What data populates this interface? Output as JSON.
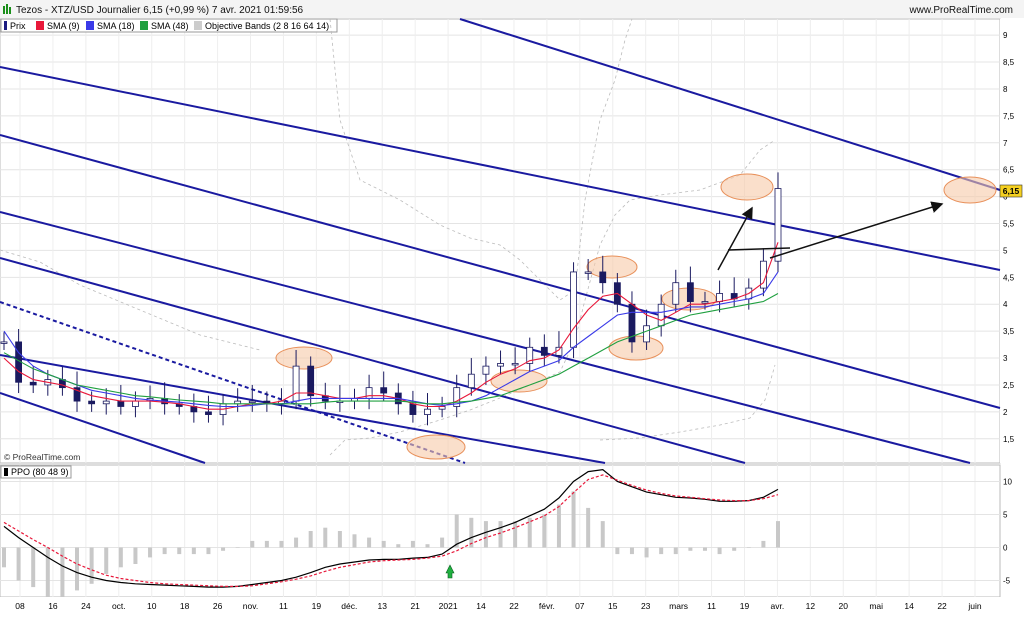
{
  "header": {
    "title": "Tezos - XTZ/USD Journalier 6,15 (+0,99 %) 7 avr. 2021 01:59:56",
    "site": "www.ProRealTime.com"
  },
  "legend": [
    {
      "label": "Prix",
      "color": "#1a1a80"
    },
    {
      "label": "SMA (9)",
      "color": "#e8183a"
    },
    {
      "label": "SMA (18)",
      "color": "#3a3ae8"
    },
    {
      "label": "SMA (48)",
      "color": "#20a040"
    },
    {
      "label": "Objective Bands (2 8 16 64 14)",
      "color": "#bbbbbb"
    }
  ],
  "copyright": "© ProRealTime.com",
  "price_badge": "6,15",
  "ppo_label": "PPO (80 48 9)",
  "chart_data": [
    {
      "type": "line",
      "panel": "price",
      "title": "Tezos - XTZ/USD Journalier",
      "y_ticks": [
        "9",
        "8,5",
        "8",
        "7,5",
        "7",
        "6,5",
        "6",
        "5,5",
        "5",
        "4,5",
        "4",
        "3,5",
        "3",
        "2,5",
        "2",
        "1,5"
      ],
      "ylim": [
        1.05,
        9.3
      ],
      "series": [
        {
          "name": "Prix",
          "color": "#1a1a80",
          "values": [
            3.3,
            2.55,
            2.5,
            2.6,
            2.45,
            2.2,
            2.15,
            2.2,
            2.1,
            2.2,
            2.25,
            2.15,
            2.1,
            2.0,
            1.95,
            2.15,
            2.2,
            2.2,
            2.15,
            2.2,
            2.85,
            2.3,
            2.2,
            2.2,
            2.25,
            2.45,
            2.35,
            2.15,
            1.95,
            2.05,
            2.1,
            2.45,
            2.7,
            2.85,
            2.9,
            2.9,
            3.2,
            3.05,
            3.2,
            4.6,
            4.6,
            4.4,
            4.0,
            3.3,
            3.6,
            4.0,
            4.4,
            4.05,
            4.05,
            4.2,
            4.1,
            4.3,
            4.8,
            6.15
          ]
        },
        {
          "name": "SMA (9)",
          "color": "#e8183a",
          "values": [
            3.0,
            2.75,
            2.6,
            2.55,
            2.5,
            2.4,
            2.3,
            2.25,
            2.2,
            2.2,
            2.2,
            2.18,
            2.15,
            2.1,
            2.05,
            2.05,
            2.1,
            2.15,
            2.15,
            2.2,
            2.35,
            2.35,
            2.3,
            2.25,
            2.25,
            2.3,
            2.3,
            2.25,
            2.15,
            2.1,
            2.1,
            2.2,
            2.35,
            2.55,
            2.7,
            2.8,
            2.95,
            3.0,
            3.15,
            3.55,
            3.9,
            4.15,
            4.2,
            4.0,
            3.8,
            3.7,
            3.85,
            4.0,
            4.0,
            4.05,
            4.1,
            4.2,
            4.4,
            5.15
          ]
        },
        {
          "name": "SMA (18)",
          "color": "#3a3ae8",
          "values": [
            3.5,
            3.1,
            2.85,
            2.7,
            2.6,
            2.5,
            2.4,
            2.35,
            2.3,
            2.25,
            2.22,
            2.2,
            2.18,
            2.15,
            2.12,
            2.1,
            2.1,
            2.12,
            2.15,
            2.15,
            2.2,
            2.25,
            2.25,
            2.25,
            2.25,
            2.25,
            2.25,
            2.25,
            2.2,
            2.15,
            2.12,
            2.15,
            2.2,
            2.3,
            2.45,
            2.6,
            2.75,
            2.85,
            2.95,
            3.2,
            3.4,
            3.6,
            3.8,
            3.85,
            3.85,
            3.85,
            3.9,
            3.95,
            3.95,
            4.0,
            4.05,
            4.1,
            4.2,
            4.6
          ]
        },
        {
          "name": "SMA (48)",
          "color": "#20a040",
          "values": [
            3.1,
            2.95,
            2.8,
            2.7,
            2.6,
            2.5,
            2.45,
            2.4,
            2.35,
            2.3,
            2.28,
            2.25,
            2.22,
            2.2,
            2.18,
            2.15,
            2.15,
            2.15,
            2.15,
            2.15,
            2.15,
            2.15,
            2.18,
            2.2,
            2.2,
            2.2,
            2.2,
            2.2,
            2.18,
            2.15,
            2.15,
            2.18,
            2.2,
            2.25,
            2.3,
            2.4,
            2.5,
            2.6,
            2.7,
            2.85,
            3.0,
            3.15,
            3.3,
            3.4,
            3.5,
            3.6,
            3.7,
            3.8,
            3.85,
            3.9,
            3.95,
            4.0,
            4.05,
            4.2
          ]
        }
      ]
    },
    {
      "type": "line",
      "panel": "ppo",
      "title": "PPO (80 48 9)",
      "y_ticks": [
        "10",
        "5",
        "0",
        "-5"
      ],
      "ylim": [
        -7.5,
        12.5
      ],
      "series": [
        {
          "name": "PPO",
          "color": "#000000",
          "values": [
            3.2,
            1.5,
            0.0,
            -1.5,
            -2.8,
            -3.8,
            -4.5,
            -5.0,
            -5.3,
            -5.5,
            -5.6,
            -5.7,
            -5.8,
            -5.9,
            -6.0,
            -6.0,
            -5.9,
            -5.6,
            -5.3,
            -5.0,
            -4.5,
            -3.8,
            -3.0,
            -2.5,
            -2.2,
            -1.9,
            -1.8,
            -1.8,
            -1.6,
            -1.5,
            -1.0,
            0.5,
            1.5,
            2.3,
            3.0,
            3.8,
            4.8,
            5.8,
            7.5,
            10.0,
            11.5,
            11.8,
            10.0,
            9.2,
            8.4,
            8.0,
            7.6,
            7.5,
            7.3,
            7.0,
            7.0,
            7.1,
            7.6,
            8.8
          ]
        },
        {
          "name": "Signal",
          "color": "#e8183a",
          "values": [
            3.8,
            2.5,
            1.2,
            0.0,
            -1.3,
            -2.5,
            -3.4,
            -4.2,
            -4.7,
            -5.0,
            -5.3,
            -5.5,
            -5.6,
            -5.7,
            -5.8,
            -5.9,
            -5.9,
            -5.8,
            -5.5,
            -5.2,
            -4.8,
            -4.3,
            -3.6,
            -3.0,
            -2.6,
            -2.2,
            -2.0,
            -1.9,
            -1.8,
            -1.6,
            -1.3,
            -0.5,
            0.6,
            1.5,
            2.2,
            3.0,
            3.9,
            4.8,
            6.2,
            8.3,
            10.3,
            11.0,
            10.2,
            9.4,
            8.7,
            8.2,
            7.8,
            7.6,
            7.4,
            7.2,
            7.1,
            7.1,
            7.4,
            8.0
          ]
        }
      ]
    }
  ],
  "x_axis": {
    "labels": [
      "08",
      "16",
      "24",
      "oct.",
      "10",
      "18",
      "26",
      "nov.",
      "11",
      "19",
      "déc.",
      "13",
      "21",
      "2021",
      "14",
      "22",
      "févr.",
      "07",
      "15",
      "23",
      "mars",
      "11",
      "19",
      "avr.",
      "12",
      "20",
      "mai",
      "14",
      "22",
      "juin"
    ]
  }
}
